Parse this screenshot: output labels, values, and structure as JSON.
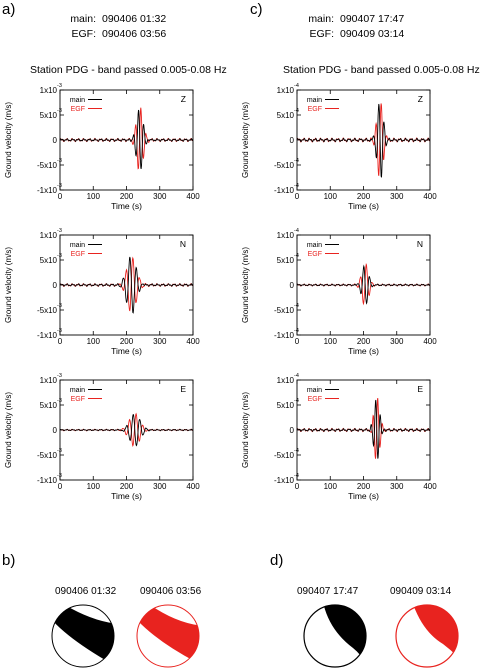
{
  "columns": [
    {
      "panel": "a)",
      "header": {
        "main_label": "main:",
        "main_value": "090406 01:32",
        "egf_label": "EGF:",
        "egf_value": "090406 03:56"
      },
      "station_title": "Station PDG - band passed  0.005-0.08 Hz",
      "exponent_label": "-3"
    },
    {
      "panel": "c)",
      "header": {
        "main_label": "main:",
        "main_value": "090407 17:47",
        "egf_label": "EGF:",
        "egf_value": "090409 03:14"
      },
      "station_title": "Station PDG - band passed  0.005-0.08 Hz",
      "exponent_label": "-4"
    }
  ],
  "focal_panels": [
    {
      "panel": "b)",
      "labels": [
        "090406 01:32",
        "090406 03:56"
      ]
    },
    {
      "panel": "d)",
      "labels": [
        "090407 17:47",
        "090409 03:14"
      ]
    }
  ],
  "colors": {
    "main": "#000000",
    "egf": "#e8231f"
  },
  "chart_data": [
    {
      "id": "a-Z",
      "type": "line",
      "component": "Z",
      "xlabel": "Time (s)",
      "ylabel": "Ground velocity (m/s)",
      "xlim": [
        0,
        400
      ],
      "ylim": [
        -0.001,
        0.001
      ],
      "xticks": [
        "0",
        "100",
        "200",
        "300",
        "400"
      ],
      "yticks": [
        "1x10",
        "5x10",
        "0",
        "-5x10",
        "-1x10"
      ],
      "legend": {
        "position": "top-left",
        "entries": [
          "main",
          "EGF"
        ]
      },
      "wave": {
        "center": 240,
        "amp": 0.00065,
        "period": 16,
        "width": 14
      }
    },
    {
      "id": "a-N",
      "type": "line",
      "component": "N",
      "xlabel": "Time (s)",
      "ylabel": "Ground velocity (m/s)",
      "xlim": [
        0,
        400
      ],
      "ylim": [
        -0.001,
        0.001
      ],
      "xticks": [
        "0",
        "100",
        "200",
        "300",
        "400"
      ],
      "yticks": [
        "1x10",
        "5x10",
        "0",
        "-5x10",
        "-1x10"
      ],
      "legend": {
        "position": "top-left",
        "entries": [
          "main",
          "EGF"
        ]
      },
      "wave": {
        "center": 215,
        "amp": 0.00058,
        "period": 20,
        "width": 20
      }
    },
    {
      "id": "a-E",
      "type": "line",
      "component": "E",
      "xlabel": "Time (s)",
      "ylabel": "Ground velocity (m/s)",
      "xlim": [
        0,
        400
      ],
      "ylim": [
        -0.001,
        0.001
      ],
      "xticks": [
        "0",
        "100",
        "200",
        "300",
        "400"
      ],
      "yticks": [
        "1x10",
        "5x10",
        "0",
        "-5x10",
        "-1x10"
      ],
      "legend": {
        "position": "top-left",
        "entries": [
          "main",
          "EGF"
        ]
      },
      "wave": {
        "center": 225,
        "amp": 0.00033,
        "period": 20,
        "width": 22
      }
    },
    {
      "id": "c-Z",
      "type": "line",
      "component": "Z",
      "xlabel": "Time (s)",
      "ylabel": "Ground velocity (m/s)",
      "xlim": [
        0,
        400
      ],
      "ylim": [
        -0.0001,
        0.0001
      ],
      "xticks": [
        "0",
        "100",
        "200",
        "300",
        "400"
      ],
      "yticks": [
        "1x10",
        "5x10",
        "0",
        "-5x10",
        "-1x10"
      ],
      "legend": {
        "position": "top-left",
        "entries": [
          "main",
          "EGF"
        ]
      },
      "wave": {
        "center": 250,
        "amp": 8e-05,
        "period": 16,
        "width": 13
      }
    },
    {
      "id": "c-N",
      "type": "line",
      "component": "N",
      "xlabel": "Time (s)",
      "ylabel": "Ground velocity (m/s)",
      "xlim": [
        0,
        400
      ],
      "ylim": [
        -0.0001,
        0.0001
      ],
      "xticks": [
        "0",
        "100",
        "200",
        "300",
        "400"
      ],
      "yticks": [
        "1x10",
        "5x10",
        "0",
        "-5x10",
        "-1x10"
      ],
      "legend": {
        "position": "top-left",
        "entries": [
          "main",
          "EGF"
        ]
      },
      "wave": {
        "center": 205,
        "amp": 4.2e-05,
        "period": 18,
        "width": 14
      }
    },
    {
      "id": "c-E",
      "type": "line",
      "component": "E",
      "xlabel": "Time (s)",
      "ylabel": "Ground velocity (m/s)",
      "xlim": [
        0,
        400
      ],
      "ylim": [
        -0.0001,
        0.0001
      ],
      "xticks": [
        "0",
        "100",
        "200",
        "300",
        "400"
      ],
      "yticks": [
        "1x10",
        "5x10",
        "0",
        "-5x10",
        "-1x10"
      ],
      "legend": {
        "position": "top-left",
        "entries": [
          "main",
          "EGF"
        ]
      },
      "wave": {
        "center": 240,
        "amp": 6.5e-05,
        "period": 14,
        "width": 12
      }
    }
  ]
}
